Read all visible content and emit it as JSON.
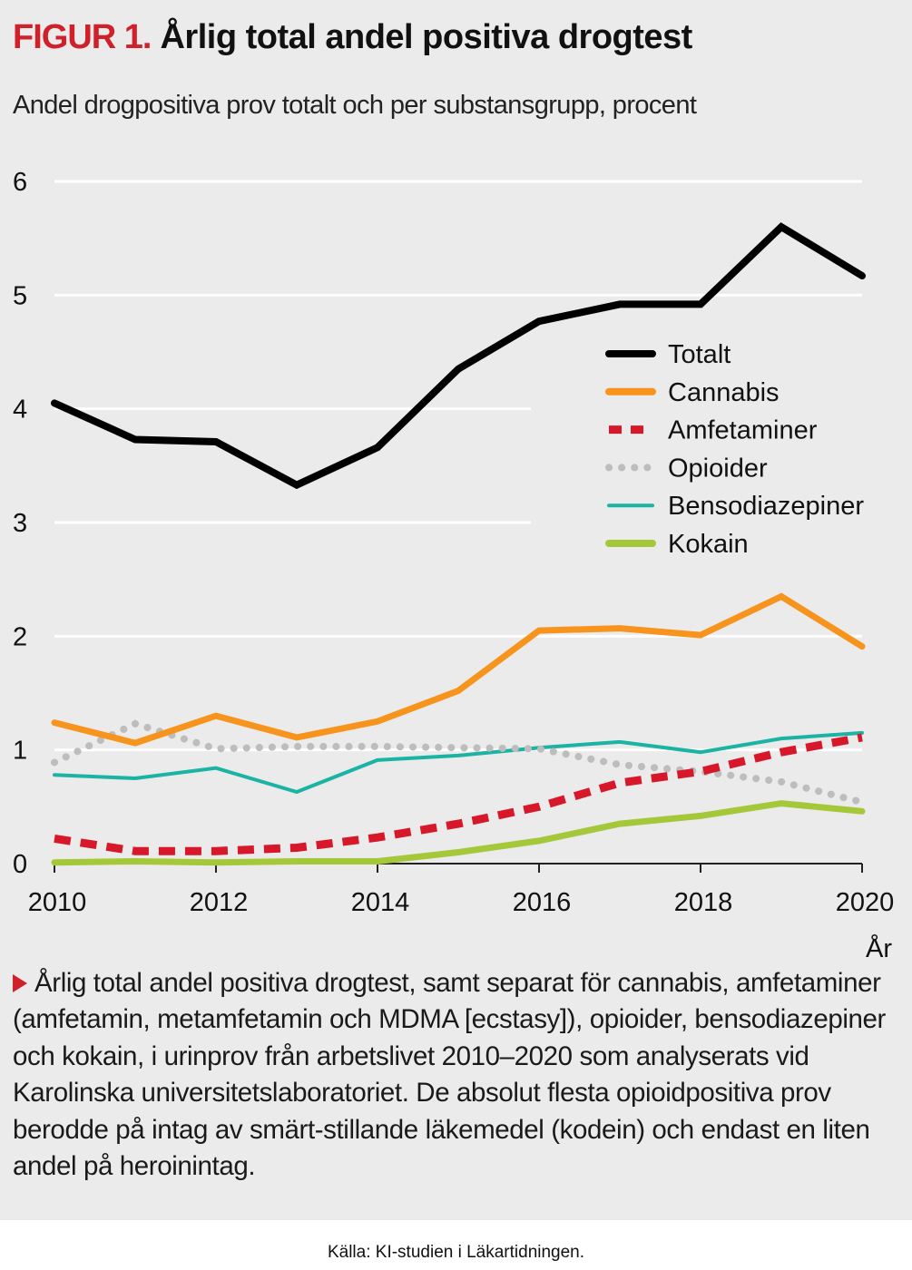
{
  "figure": {
    "label": "FIGUR 1.",
    "title": "Årlig total andel positiva drogtest",
    "subtitle": "Andel drogpositiva prov totalt och per substansgrupp, procent",
    "caption": "Årlig total andel positiva drogtest, samt separat för cannabis, amfetaminer (amfetamin, metamfetamin och MDMA [ecstasy]), opioider, bensodiazepiner och kokain, i urinprov från arbetslivet 2010–2020 som analyserats vid Karolinska universitetslaboratoriet. De absolut flesta opioidpositiva prov berodde på intag av smärt-stillande läkemedel (kodein) och endast en liten andel på heroinintag.",
    "source": "Källa: KI-studien i Läkartidningen.",
    "accent_color": "#d0202a"
  },
  "chart_data": {
    "type": "line",
    "title": "Årlig total andel positiva drogtest",
    "subtitle": "Andel drogpositiva prov totalt och per substansgrupp, procent",
    "xlabel": "År",
    "ylabel": "",
    "x": [
      2010,
      2011,
      2012,
      2013,
      2014,
      2015,
      2016,
      2017,
      2018,
      2019,
      2020
    ],
    "xticks": [
      "2010",
      "2012",
      "2014",
      "2016",
      "2018",
      "2020"
    ],
    "yticks": [
      "0",
      "1",
      "2",
      "3",
      "4",
      "5",
      "6"
    ],
    "ylim": [
      0,
      6
    ],
    "xlim": [
      2010,
      2020
    ],
    "grid": "horizontal",
    "legend_position": "right",
    "series": [
      {
        "name": "Totalt",
        "color": "#000000",
        "style": "solid",
        "width": 8,
        "values": [
          4.05,
          3.73,
          3.71,
          3.33,
          3.66,
          4.35,
          4.77,
          4.92,
          4.92,
          5.6,
          5.17
        ]
      },
      {
        "name": "Cannabis",
        "color": "#f7941d",
        "style": "solid",
        "width": 7,
        "values": [
          1.24,
          1.06,
          1.3,
          1.11,
          1.25,
          1.52,
          2.05,
          2.07,
          2.01,
          2.35,
          1.91
        ]
      },
      {
        "name": "Amfetaminer",
        "color": "#d7182a",
        "style": "dashed",
        "width": 9,
        "values": [
          0.22,
          0.11,
          0.11,
          0.14,
          0.23,
          0.35,
          0.5,
          0.71,
          0.81,
          0.98,
          1.11
        ]
      },
      {
        "name": "Opioider",
        "color": "#bdbdbd",
        "style": "dotted",
        "width": 8,
        "values": [
          0.89,
          1.23,
          1.01,
          1.03,
          1.03,
          1.02,
          1.01,
          0.87,
          0.81,
          0.72,
          0.54
        ]
      },
      {
        "name": "Bensodiazepiner",
        "color": "#1bb3a3",
        "style": "solid",
        "width": 4,
        "values": [
          0.78,
          0.75,
          0.84,
          0.63,
          0.91,
          0.95,
          1.02,
          1.07,
          0.98,
          1.1,
          1.15
        ]
      },
      {
        "name": "Kokain",
        "color": "#a5c83a",
        "style": "solid",
        "width": 7,
        "values": [
          0.01,
          0.02,
          0.01,
          0.02,
          0.02,
          0.1,
          0.2,
          0.35,
          0.42,
          0.53,
          0.46
        ]
      }
    ]
  }
}
